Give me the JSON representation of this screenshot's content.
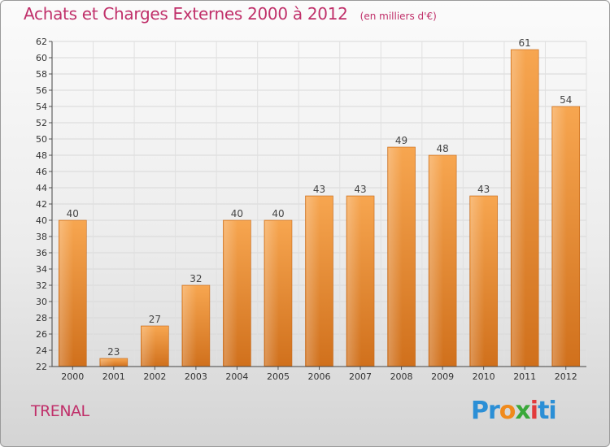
{
  "title": "Achats et Charges Externes 2000 à 2012",
  "subtitle": "(en milliers d'€)",
  "place": "TRENAL",
  "logo_text": "Proxiti",
  "colors": {
    "bar_light": "#f5a04a",
    "bar_dark": "#d2711e",
    "title": "#c0306a"
  },
  "chart_data": {
    "type": "bar",
    "title": "Achats et Charges Externes 2000 à 2012",
    "subtitle": "(en milliers d'€)",
    "xlabel": "",
    "ylabel": "",
    "categories": [
      "2000",
      "2001",
      "2002",
      "2003",
      "2004",
      "2005",
      "2006",
      "2007",
      "2008",
      "2009",
      "2010",
      "2011",
      "2012"
    ],
    "values": [
      40,
      23,
      27,
      32,
      40,
      40,
      43,
      43,
      49,
      48,
      43,
      61,
      54
    ],
    "ylim": [
      22,
      62
    ],
    "yticks": [
      22,
      24,
      26,
      28,
      30,
      32,
      34,
      36,
      38,
      40,
      42,
      44,
      46,
      48,
      50,
      52,
      54,
      56,
      58,
      60,
      62
    ],
    "grid": true,
    "legend": "none"
  }
}
